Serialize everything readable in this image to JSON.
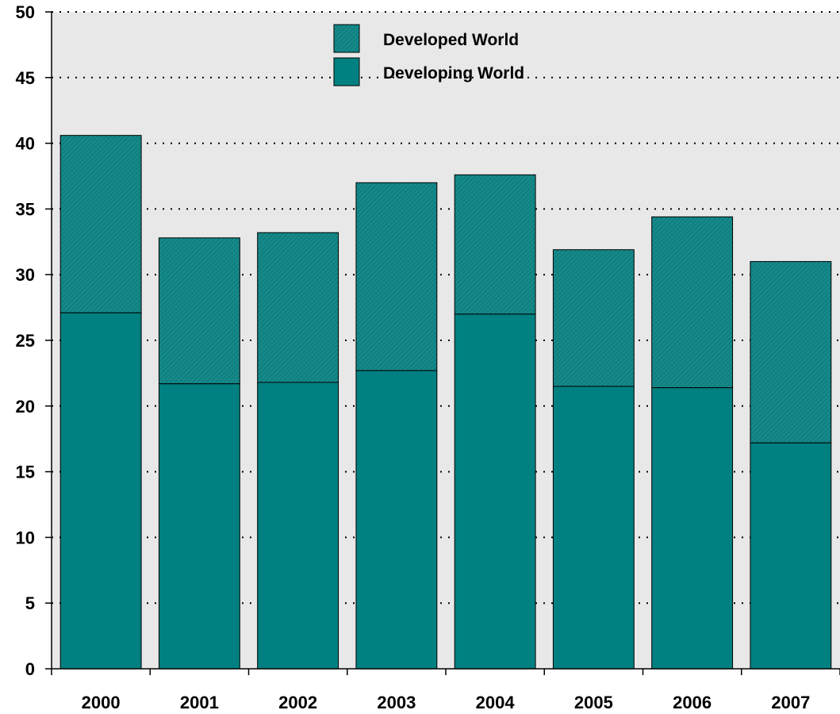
{
  "chart_data": {
    "type": "bar",
    "stacked": true,
    "categories": [
      "2000",
      "2001",
      "2002",
      "2003",
      "2004",
      "2005",
      "2006",
      "2007"
    ],
    "series": [
      {
        "name": "Developing World",
        "values": [
          27.1,
          21.7,
          21.8,
          22.7,
          27.0,
          21.5,
          21.4,
          17.2
        ],
        "color": "#008080",
        "pattern": "solid"
      },
      {
        "name": "Developed World",
        "values": [
          13.5,
          11.1,
          11.4,
          14.3,
          10.6,
          10.4,
          13.0,
          13.8
        ],
        "color": "#168a8a",
        "pattern": "diagonal-hatch"
      }
    ],
    "legend_order": [
      "Developed World",
      "Developing World"
    ],
    "legend_position": "top-center",
    "ylim": [
      0,
      50
    ],
    "yticks": [
      "0",
      "5",
      "10",
      "15",
      "20",
      "25",
      "30",
      "35",
      "40",
      "45",
      "50"
    ],
    "grid": "horizontal-dotted",
    "plot_background": "#e8e8e8",
    "title": "",
    "xlabel": "",
    "ylabel": ""
  }
}
